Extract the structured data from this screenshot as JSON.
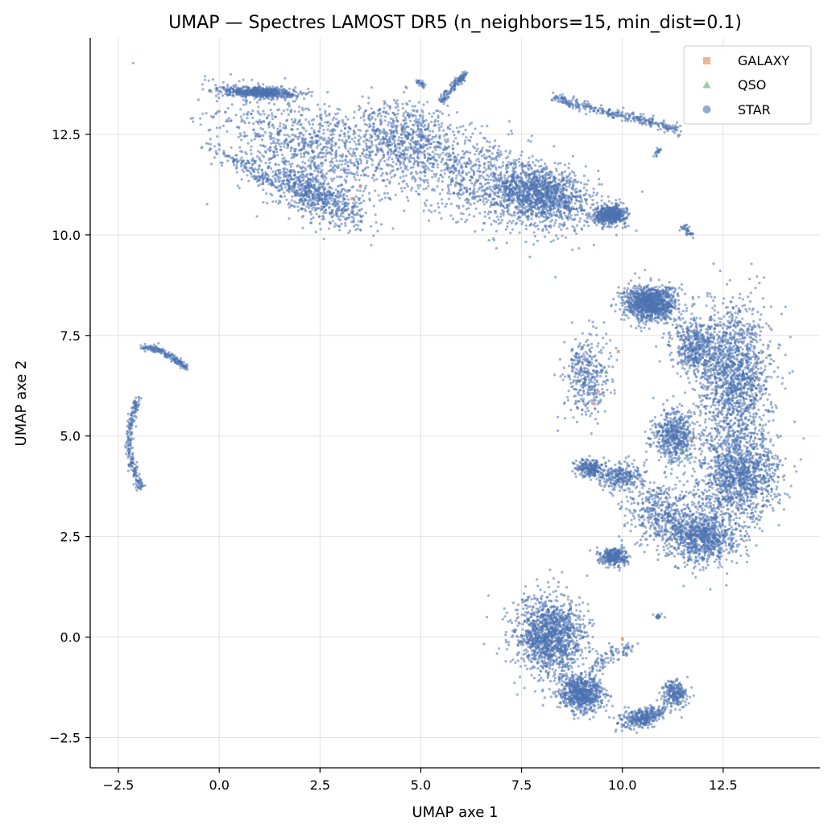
{
  "chart_data": {
    "type": "scatter",
    "title": "UMAP — Spectres LAMOST DR5 (n_neighbors=15, min_dist=0.1)",
    "xlabel": "UMAP axe 1",
    "ylabel": "UMAP axe 2",
    "xlim": [
      -3.2,
      14.9
    ],
    "ylim": [
      -3.25,
      14.9
    ],
    "xticks": [
      -2.5,
      0.0,
      2.5,
      5.0,
      7.5,
      10.0,
      12.5
    ],
    "yticks": [
      -2.5,
      0.0,
      2.5,
      5.0,
      7.5,
      10.0,
      12.5
    ],
    "xtick_labels": [
      "−2.5",
      "0.0",
      "2.5",
      "5.0",
      "7.5",
      "10.0",
      "12.5"
    ],
    "ytick_labels": [
      "−2.5",
      "0.0",
      "2.5",
      "5.0",
      "7.5",
      "10.0",
      "12.5"
    ],
    "grid": true,
    "legend_position": "top-right",
    "series": [
      {
        "name": "GALAXY",
        "marker": "square",
        "color": "#dd8452",
        "points": [
          [
            3.3,
            10.9
          ],
          [
            3.5,
            11.2
          ],
          [
            9.9,
            7.1
          ],
          [
            9.4,
            6.1
          ],
          [
            11.7,
            4.9
          ],
          [
            10.0,
            -0.05
          ],
          [
            9.3,
            5.8
          ]
        ]
      },
      {
        "name": "QSO",
        "marker": "triangle",
        "color": "#55a868",
        "points": [
          [
            9.6,
            6.6
          ],
          [
            11.5,
            4.6
          ]
        ]
      },
      {
        "name": "STAR",
        "marker": "circle",
        "color": "#4c72b0",
        "clusters": [
          {
            "shape": "blob",
            "center": [
              2.3,
              12.2
            ],
            "spread": [
              2.2,
              1.0
            ],
            "angle": -22,
            "density": 1.0
          },
          {
            "shape": "blob",
            "center": [
              6.5,
              11.4
            ],
            "spread": [
              2.3,
              1.0
            ],
            "angle": -22,
            "density": 1.0
          },
          {
            "shape": "blob",
            "center": [
              8.0,
              11.0
            ],
            "spread": [
              1.2,
              0.6
            ],
            "angle": -15,
            "density": 1.3
          },
          {
            "shape": "blob",
            "center": [
              2.3,
              11.0
            ],
            "spread": [
              1.3,
              0.45
            ],
            "angle": -25,
            "density": 0.8
          },
          {
            "shape": "blob",
            "center": [
              4.6,
              12.4
            ],
            "spread": [
              1.2,
              0.8
            ],
            "angle": -20,
            "density": 0.6
          },
          {
            "shape": "blob",
            "center": [
              9.7,
              10.5
            ],
            "spread": [
              0.35,
              0.2
            ],
            "angle": 0,
            "density": 0.6
          },
          {
            "shape": "blob",
            "center": [
              1.0,
              13.55
            ],
            "spread": [
              0.8,
              0.12
            ],
            "angle": -2,
            "density": 0.7
          },
          {
            "shape": "blob",
            "center": [
              10.7,
              8.3
            ],
            "spread": [
              0.6,
              0.4
            ],
            "angle": 0,
            "density": 1.2
          },
          {
            "shape": "blob",
            "center": [
              12.8,
              6.5
            ],
            "spread": [
              0.8,
              1.6
            ],
            "angle": 0,
            "density": 1.6
          },
          {
            "shape": "blob",
            "center": [
              12.9,
              4.0
            ],
            "spread": [
              0.9,
              1.0
            ],
            "angle": 0,
            "density": 1.4
          },
          {
            "shape": "blob",
            "center": [
              12.0,
              2.5
            ],
            "spread": [
              0.8,
              0.6
            ],
            "angle": 0,
            "density": 1.0
          },
          {
            "shape": "blob",
            "center": [
              11.3,
              5.0
            ],
            "spread": [
              0.5,
              0.6
            ],
            "angle": 0,
            "density": 0.6
          },
          {
            "shape": "blob",
            "center": [
              11.8,
              7.2
            ],
            "spread": [
              0.5,
              0.6
            ],
            "angle": 0,
            "density": 0.5
          },
          {
            "shape": "blob",
            "center": [
              9.1,
              6.5
            ],
            "spread": [
              0.5,
              0.9
            ],
            "angle": 0,
            "density": 0.4
          },
          {
            "shape": "blob",
            "center": [
              9.2,
              4.2
            ],
            "spread": [
              0.3,
              0.2
            ],
            "angle": 0,
            "density": 0.25
          },
          {
            "shape": "blob",
            "center": [
              9.8,
              2.0
            ],
            "spread": [
              0.3,
              0.2
            ],
            "angle": 0,
            "density": 0.35
          },
          {
            "shape": "blob",
            "center": [
              8.2,
              0.0
            ],
            "spread": [
              0.8,
              0.9
            ],
            "angle": 0,
            "density": 1.5
          },
          {
            "shape": "blob",
            "center": [
              9.0,
              -1.4
            ],
            "spread": [
              0.5,
              0.4
            ],
            "angle": 0,
            "density": 0.8
          },
          {
            "shape": "blob",
            "center": [
              10.5,
              -2.0
            ],
            "spread": [
              0.5,
              0.2
            ],
            "angle": 15,
            "density": 0.4
          },
          {
            "shape": "blob",
            "center": [
              11.3,
              -1.4
            ],
            "spread": [
              0.3,
              0.3
            ],
            "angle": 0,
            "density": 0.25
          },
          {
            "shape": "blob",
            "center": [
              11.0,
              3.1
            ],
            "spread": [
              0.9,
              0.7
            ],
            "angle": 0,
            "density": 0.5
          },
          {
            "shape": "blob",
            "center": [
              10.0,
              4.0
            ],
            "spread": [
              0.5,
              0.3
            ],
            "angle": 0,
            "density": 0.3
          },
          {
            "shape": "curve",
            "points": [
              [
                8.3,
                13.45
              ],
              [
                9.0,
                13.2
              ],
              [
                9.8,
                13.0
              ],
              [
                10.6,
                12.85
              ],
              [
                11.4,
                12.6
              ]
            ],
            "width": 0.06,
            "density": 0.35
          },
          {
            "shape": "curve",
            "points": [
              [
                5.5,
                13.3
              ],
              [
                5.8,
                13.7
              ],
              [
                6.1,
                14.0
              ]
            ],
            "width": 0.05,
            "density": 0.15
          },
          {
            "shape": "curve",
            "points": [
              [
                -1.9,
                7.2
              ],
              [
                -1.5,
                7.15
              ],
              [
                -1.1,
                6.9
              ],
              [
                -0.8,
                6.7
              ]
            ],
            "width": 0.04,
            "density": 0.2
          },
          {
            "shape": "curve",
            "points": [
              [
                -2.0,
                5.95
              ],
              [
                -2.2,
                5.3
              ],
              [
                -2.25,
                4.7
              ],
              [
                -2.1,
                4.1
              ],
              [
                -1.95,
                3.7
              ]
            ],
            "width": 0.05,
            "density": 0.25
          },
          {
            "shape": "curve",
            "points": [
              [
                -0.3,
                12.3
              ],
              [
                0.3,
                11.9
              ],
              [
                0.9,
                11.6
              ],
              [
                1.2,
                11.3
              ]
            ],
            "width": 0.08,
            "density": 0.12
          },
          {
            "shape": "curve",
            "points": [
              [
                9.2,
                -0.9
              ],
              [
                9.6,
                -0.5
              ],
              [
                10.3,
                -0.2
              ]
            ],
            "width": 0.08,
            "density": 0.1
          },
          {
            "shape": "curve",
            "points": [
              [
                11.5,
                10.2
              ],
              [
                11.7,
                10.0
              ]
            ],
            "width": 0.05,
            "density": 0.04
          },
          {
            "shape": "curve",
            "points": [
              [
                4.9,
                13.8
              ],
              [
                5.1,
                13.7
              ]
            ],
            "width": 0.04,
            "density": 0.03
          },
          {
            "shape": "curve",
            "points": [
              [
                10.8,
                0.55
              ],
              [
                10.95,
                0.5
              ]
            ],
            "width": 0.03,
            "density": 0.02
          },
          {
            "shape": "curve",
            "points": [
              [
                10.8,
                12.0
              ],
              [
                10.95,
                12.1
              ]
            ],
            "width": 0.04,
            "density": 0.02
          }
        ]
      }
    ]
  }
}
